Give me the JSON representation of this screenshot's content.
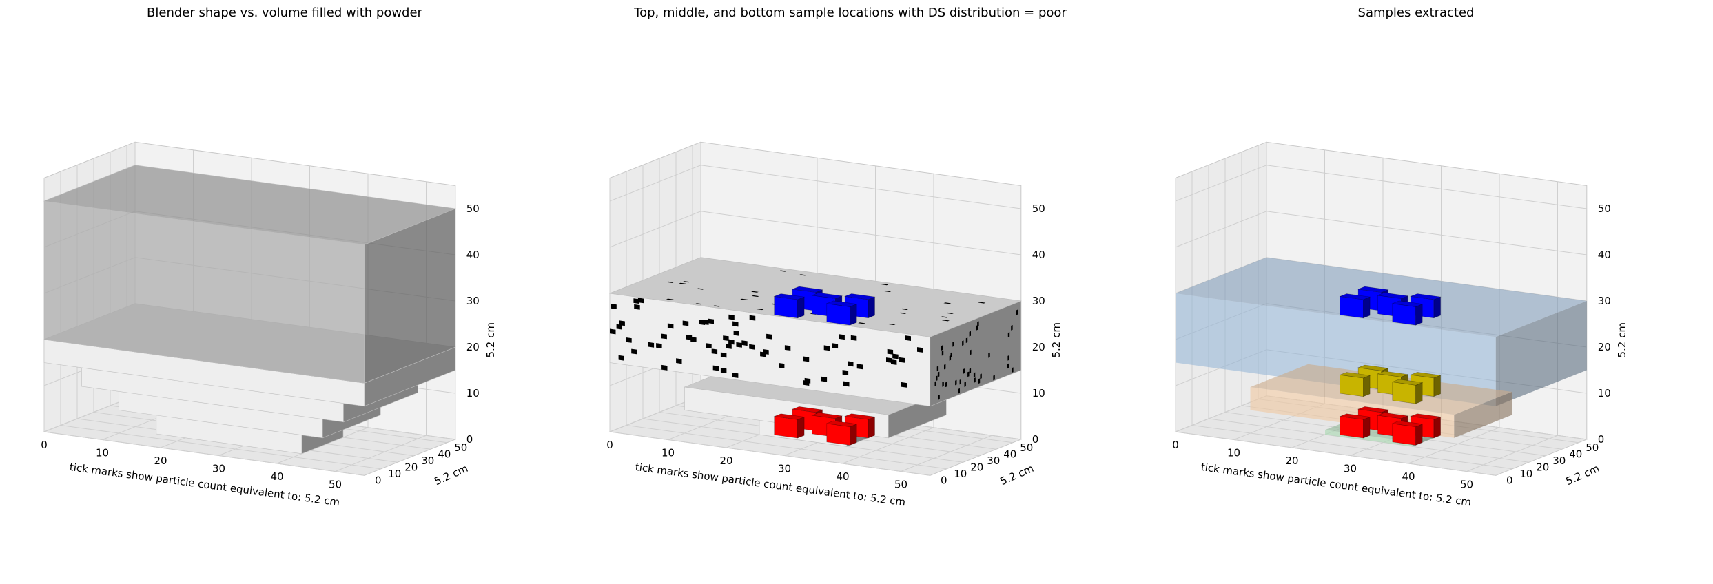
{
  "chart_data": [
    {
      "type": "voxel-3d",
      "title": "Blender shape vs. volume filled with powder",
      "xlabel": "tick marks show particle count equivalent to: 5.2 cm",
      "ylabel": "5.2 cm",
      "zlabel": "5.2 cm",
      "xticks": [
        "0",
        "10",
        "20",
        "30",
        "40",
        "50"
      ],
      "yticks": [
        "0",
        "10",
        "20",
        "30",
        "40",
        "50"
      ],
      "zticks": [
        "0",
        "10",
        "20",
        "30",
        "40",
        "50"
      ],
      "xlim": [
        0,
        55
      ],
      "ylim": [
        0,
        55
      ],
      "zlim": [
        0,
        55
      ],
      "grid": true,
      "solids": [
        {
          "role": "blender-shape",
          "x": [
            0,
            55
          ],
          "y": [
            0,
            55
          ],
          "z": [
            20,
            50
          ],
          "color": "#a9a9a9",
          "opacity": 0.7
        },
        {
          "role": "powder-layer",
          "x": [
            0,
            55
          ],
          "y": [
            0,
            55
          ],
          "z": [
            15,
            20
          ],
          "color": "#eeeeee"
        },
        {
          "role": "powder-layer",
          "x": [
            5,
            50
          ],
          "y": [
            5,
            50
          ],
          "z": [
            10,
            15
          ],
          "color": "#eeeeee"
        },
        {
          "role": "powder-layer",
          "x": [
            10,
            45
          ],
          "y": [
            10,
            45
          ],
          "z": [
            5,
            10
          ],
          "color": "#eeeeee"
        },
        {
          "role": "powder-layer",
          "x": [
            15,
            40
          ],
          "y": [
            15,
            40
          ],
          "z": [
            0,
            5
          ],
          "color": "#eeeeee"
        }
      ]
    },
    {
      "type": "voxel-3d",
      "title": "Top, middle, and bottom sample locations with DS distribution = poor",
      "xlabel": "tick marks show particle count equivalent to: 5.2 cm",
      "ylabel": "5.2 cm",
      "zlabel": "5.2 cm",
      "xticks": [
        "0",
        "10",
        "20",
        "30",
        "40",
        "50"
      ],
      "yticks": [
        "0",
        "10",
        "20",
        "30",
        "40",
        "50"
      ],
      "zticks": [
        "0",
        "10",
        "20",
        "30",
        "40",
        "50"
      ],
      "xlim": [
        0,
        55
      ],
      "ylim": [
        0,
        55
      ],
      "zlim": [
        0,
        55
      ],
      "grid": true,
      "solids": [
        {
          "role": "powder-bottom",
          "x": [
            20,
            35
          ],
          "y": [
            20,
            35
          ],
          "z": [
            0,
            5
          ],
          "color": "#eeeeee"
        },
        {
          "role": "powder-middle",
          "x": [
            10,
            45
          ],
          "y": [
            10,
            45
          ],
          "z": [
            5,
            10
          ],
          "color": "#eeeeee"
        },
        {
          "role": "powder-top",
          "x": [
            0,
            55
          ],
          "y": [
            0,
            55
          ],
          "z": [
            15,
            30
          ],
          "color": "#eeeeee"
        }
      ],
      "samples": [
        {
          "level": "bottom",
          "color": "#ff0000",
          "cubes": [
            [
              22,
              22,
              0
            ],
            [
              31,
              22,
              0
            ],
            [
              26.5,
              29,
              0
            ],
            [
              22,
              33,
              0
            ],
            [
              31,
              33,
              0
            ]
          ],
          "size": 4
        },
        {
          "level": "top",
          "color": "#0000ff",
          "cubes": [
            [
              22,
              22,
              26
            ],
            [
              31,
              22,
              26
            ],
            [
              26.5,
              29,
              26
            ],
            [
              22,
              33,
              26
            ],
            [
              31,
              33,
              26
            ]
          ],
          "size": 4
        }
      ],
      "speckle_color": "#000000"
    },
    {
      "type": "voxel-3d",
      "title": "Samples extracted",
      "xlabel": "tick marks show particle count equivalent to: 5.2 cm",
      "ylabel": "5.2 cm",
      "zlabel": "5.2 cm",
      "xticks": [
        "0",
        "10",
        "20",
        "30",
        "40",
        "50"
      ],
      "yticks": [
        "0",
        "10",
        "20",
        "30",
        "40",
        "50"
      ],
      "zticks": [
        "0",
        "10",
        "20",
        "30",
        "40",
        "50"
      ],
      "xlim": [
        0,
        55
      ],
      "ylim": [
        0,
        55
      ],
      "zlim": [
        0,
        55
      ],
      "grid": true,
      "planes": [
        {
          "level": "top",
          "x": [
            0,
            55
          ],
          "y": [
            0,
            55
          ],
          "z": [
            15,
            30
          ],
          "color": "#8fb3d6",
          "opacity": 0.55
        },
        {
          "level": "middle",
          "x": [
            10,
            45
          ],
          "y": [
            10,
            45
          ],
          "z": [
            5,
            10
          ],
          "color": "#f0c8a0",
          "opacity": 0.6
        },
        {
          "level": "bottom",
          "x": [
            20,
            35
          ],
          "y": [
            20,
            35
          ],
          "z": [
            0,
            1
          ],
          "color": "#a8d8b0",
          "opacity": 0.6
        }
      ],
      "samples": [
        {
          "level": "top",
          "color": "#0000ff",
          "cubes": [
            [
              22,
              22,
              26
            ],
            [
              31,
              22,
              26
            ],
            [
              26.5,
              29,
              26
            ],
            [
              22,
              33,
              26
            ],
            [
              31,
              33,
              26
            ]
          ],
          "size": 4
        },
        {
          "level": "middle",
          "color": "#c8b400",
          "cubes": [
            [
              22,
              22,
              9
            ],
            [
              31,
              22,
              9
            ],
            [
              26.5,
              29,
              9
            ],
            [
              22,
              33,
              9
            ],
            [
              31,
              33,
              9
            ]
          ],
          "size": 4
        },
        {
          "level": "bottom",
          "color": "#ff0000",
          "cubes": [
            [
              22,
              22,
              0
            ],
            [
              31,
              22,
              0
            ],
            [
              26.5,
              29,
              0
            ],
            [
              22,
              33,
              0
            ],
            [
              31,
              33,
              0
            ]
          ],
          "size": 4
        }
      ]
    }
  ]
}
